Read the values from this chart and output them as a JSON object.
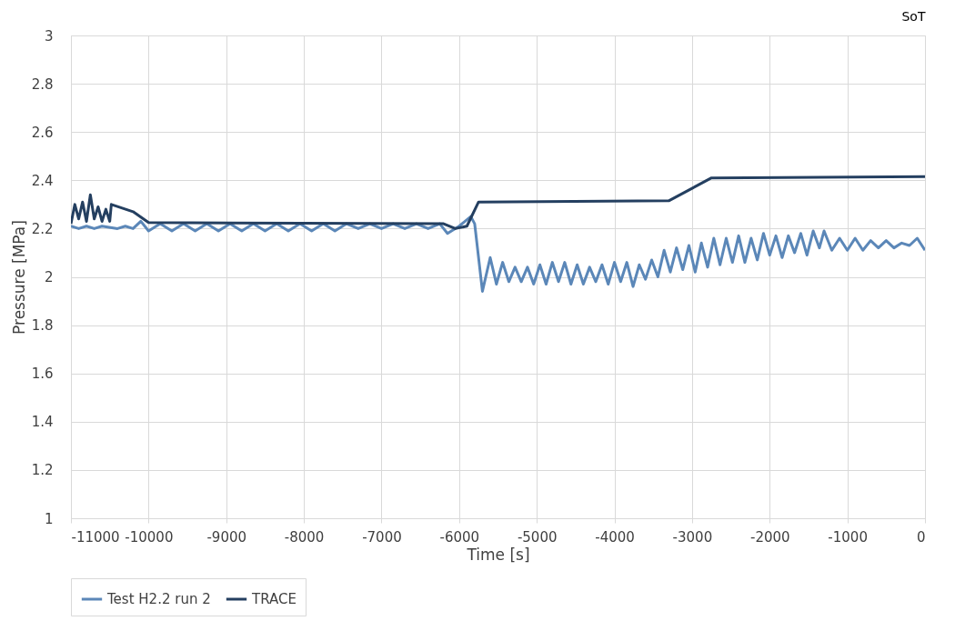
{
  "chart_data": {
    "type": "line",
    "xlabel": "Time [s]",
    "ylabel": "Pressure [MPa]",
    "annotations": [
      "SoT"
    ],
    "xlim": [
      -11000,
      0
    ],
    "xticks": [
      -11000,
      -10000,
      -9000,
      -8000,
      -7000,
      -6000,
      -5000,
      -4000,
      -3000,
      -2000,
      -1000,
      0
    ],
    "ylim": [
      1,
      3
    ],
    "yticks": [
      1,
      1.2,
      1.4,
      1.6,
      1.8,
      2,
      2.2,
      2.4,
      2.6,
      2.8,
      3
    ],
    "grid": true,
    "legend": "bottom",
    "marker": "none",
    "line_style": "solid",
    "series": [
      {
        "name": "Test H2.2 run 2",
        "color": "#5b87b8",
        "x": [
          -11000,
          -10900,
          -10800,
          -10700,
          -10600,
          -10400,
          -10300,
          -10200,
          -10100,
          -10000,
          -9850,
          -9700,
          -9550,
          -9400,
          -9250,
          -9100,
          -8950,
          -8800,
          -8650,
          -8500,
          -8350,
          -8200,
          -8050,
          -7900,
          -7750,
          -7600,
          -7450,
          -7300,
          -7150,
          -7000,
          -6850,
          -6700,
          -6550,
          -6400,
          -6250,
          -6150,
          -6000,
          -5850,
          -5800,
          -5700,
          -5600,
          -5520,
          -5440,
          -5360,
          -5280,
          -5200,
          -5120,
          -5040,
          -4960,
          -4880,
          -4800,
          -4720,
          -4640,
          -4560,
          -4480,
          -4400,
          -4320,
          -4240,
          -4160,
          -4080,
          -4000,
          -3920,
          -3840,
          -3760,
          -3680,
          -3600,
          -3520,
          -3440,
          -3360,
          -3280,
          -3200,
          -3120,
          -3040,
          -2960,
          -2880,
          -2800,
          -2720,
          -2640,
          -2560,
          -2480,
          -2400,
          -2320,
          -2240,
          -2160,
          -2080,
          -2000,
          -1920,
          -1840,
          -1760,
          -1680,
          -1600,
          -1520,
          -1440,
          -1360,
          -1300,
          -1200,
          -1100,
          -1000,
          -900,
          -800,
          -700,
          -600,
          -500,
          -400,
          -300,
          -200,
          -100,
          0
        ],
        "values": [
          2.21,
          2.2,
          2.21,
          2.2,
          2.21,
          2.2,
          2.21,
          2.2,
          2.23,
          2.19,
          2.22,
          2.19,
          2.22,
          2.19,
          2.22,
          2.19,
          2.22,
          2.19,
          2.22,
          2.19,
          2.22,
          2.19,
          2.22,
          2.19,
          2.22,
          2.19,
          2.22,
          2.2,
          2.22,
          2.2,
          2.22,
          2.2,
          2.22,
          2.2,
          2.22,
          2.18,
          2.21,
          2.25,
          2.22,
          1.94,
          2.08,
          1.97,
          2.06,
          1.98,
          2.04,
          1.98,
          2.04,
          1.97,
          2.05,
          1.97,
          2.06,
          1.98,
          2.06,
          1.97,
          2.05,
          1.97,
          2.04,
          1.98,
          2.05,
          1.97,
          2.06,
          1.98,
          2.06,
          1.96,
          2.05,
          1.99,
          2.07,
          2.0,
          2.11,
          2.02,
          2.12,
          2.03,
          2.13,
          2.02,
          2.14,
          2.04,
          2.16,
          2.05,
          2.16,
          2.06,
          2.17,
          2.06,
          2.16,
          2.07,
          2.18,
          2.09,
          2.17,
          2.08,
          2.17,
          2.1,
          2.18,
          2.09,
          2.19,
          2.12,
          2.19,
          2.11,
          2.16,
          2.11,
          2.16,
          2.11,
          2.15,
          2.12,
          2.15,
          2.12,
          2.14,
          2.13,
          2.16,
          2.11
        ]
      },
      {
        "name": "TRACE",
        "color": "#243f60",
        "x": [
          -11000,
          -10950,
          -10900,
          -10850,
          -10800,
          -10750,
          -10700,
          -10650,
          -10600,
          -10550,
          -10500,
          -10480,
          -10200,
          -10000,
          -6200,
          -6050,
          -5900,
          -5750,
          -3300,
          -2750,
          0
        ],
        "values": [
          2.22,
          2.3,
          2.24,
          2.31,
          2.23,
          2.34,
          2.24,
          2.29,
          2.23,
          2.28,
          2.23,
          2.3,
          2.27,
          2.225,
          2.22,
          2.2,
          2.21,
          2.31,
          2.315,
          2.41,
          2.415
        ]
      }
    ]
  }
}
